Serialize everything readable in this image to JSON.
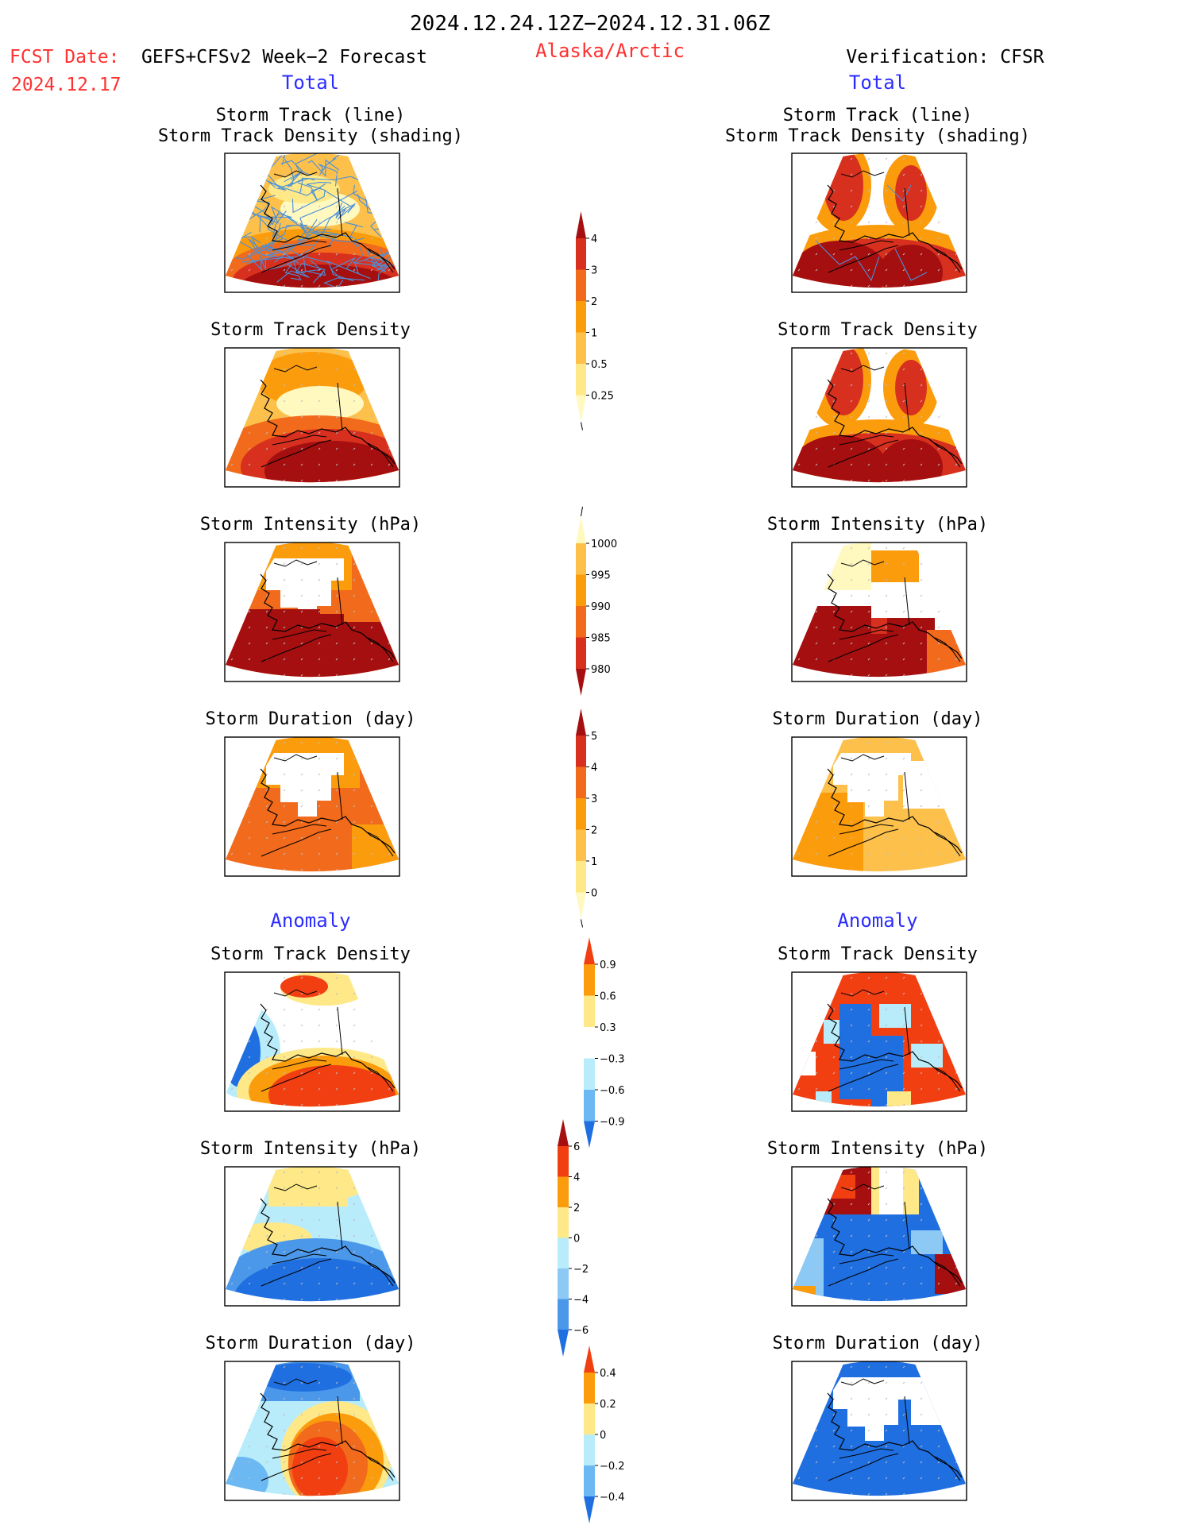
{
  "header": {
    "period": "2024.12.24.12Z−2024.12.31.06Z",
    "fcst_label": "FCST Date:",
    "fcst_date": "2024.12.17",
    "forecast_source": "GEFS+CFSv2 Week−2 Forecast",
    "region": "Alaska/Arctic",
    "verification": "Verification: CFSR"
  },
  "sections": {
    "total": "Total",
    "anomaly": "Anomaly"
  },
  "panel_titles": {
    "track_line": "Storm Track (line)",
    "track_shading": "Storm Track Density (shading)",
    "density": "Storm Track Density",
    "intensity": "Storm Intensity (hPa)",
    "duration": "Storm Duration (day)"
  },
  "colorbars": {
    "density_total": {
      "labels": [
        "4",
        "3",
        "2",
        "1",
        "0.5",
        "0.25"
      ],
      "colors": [
        "#a50f0f",
        "#d7301f",
        "#f26a1b",
        "#fb9c0d",
        "#fdc04b",
        "#fee887",
        "#fff9c0"
      ]
    },
    "intensity_total": {
      "labels": [
        "1000",
        "995",
        "990",
        "985",
        "980"
      ],
      "colors": [
        "#fff9c0",
        "#fdc04b",
        "#fb9c0d",
        "#f26a1b",
        "#d7301f",
        "#a50f0f"
      ]
    },
    "duration_total": {
      "labels": [
        "5",
        "4",
        "3",
        "2",
        "1",
        "0"
      ],
      "colors": [
        "#a50f0f",
        "#d7301f",
        "#f26a1b",
        "#fb9c0d",
        "#fdc04b",
        "#fee887",
        "#fff9c0"
      ]
    },
    "density_anom": {
      "labels": [
        "0.9",
        "0.6",
        "0.3",
        "−0.3",
        "−0.6",
        "−0.9"
      ],
      "colors": [
        "#f23f12",
        "#fb9c0d",
        "#fee887",
        "#ffffff",
        "#b8ecfb",
        "#6cb8f2",
        "#1f6fe0"
      ]
    },
    "intensity_anom": {
      "labels": [
        "6",
        "4",
        "2",
        "0",
        "−2",
        "−4",
        "−6"
      ],
      "colors": [
        "#a50f0f",
        "#f23f12",
        "#fb9c0d",
        "#fee887",
        "#b8ecfb",
        "#8ccaf5",
        "#4b98ea",
        "#1f6fe0"
      ]
    },
    "duration_anom": {
      "labels": [
        "0.4",
        "0.2",
        "0",
        "−0.2",
        "−0.4"
      ],
      "colors": [
        "#f23f12",
        "#fb9c0d",
        "#fee887",
        "#b8ecfb",
        "#6cb8f2",
        "#1f6fe0"
      ]
    }
  },
  "colors": {
    "red_text": "#ff3030",
    "blue_text": "#2b2bff",
    "track_line": "#4a90d9"
  }
}
